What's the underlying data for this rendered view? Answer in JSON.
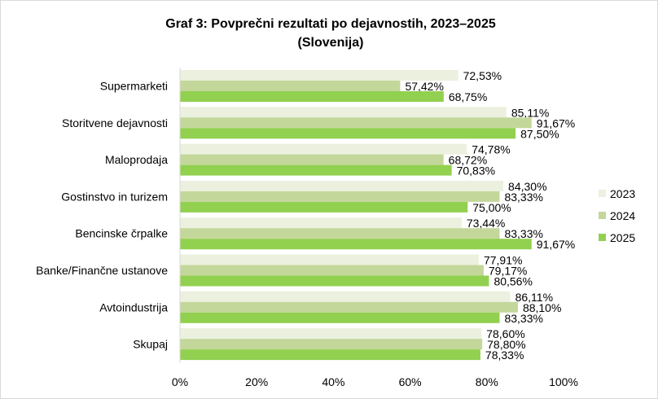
{
  "chart_data": {
    "type": "bar",
    "orientation": "horizontal",
    "title": "Graf 3: Povprečni rezultati po dejavnostih, 2023–2025",
    "subtitle": "(Slovenija)",
    "categories": [
      "Supermarketi",
      "Storitvene dejavnosti",
      "Maloprodaja",
      "Gostinstvo in turizem",
      "Bencinske črpalke",
      "Banke/Finančne ustanove",
      "Avtoindustrija",
      "Skupaj"
    ],
    "series": [
      {
        "name": "2023",
        "color": "#ebf1de",
        "values": [
          72.53,
          85.11,
          74.78,
          84.3,
          73.44,
          77.91,
          86.11,
          78.6
        ],
        "labels": [
          "72,53%",
          "85,11%",
          "74,78%",
          "84,30%",
          "73,44%",
          "77,91%",
          "86,11%",
          "78,60%"
        ]
      },
      {
        "name": "2024",
        "color": "#c4d79b",
        "values": [
          57.42,
          91.67,
          68.72,
          83.33,
          83.33,
          79.17,
          88.1,
          78.8
        ],
        "labels": [
          "57,42%",
          "91,67%",
          "68,72%",
          "83,33%",
          "83,33%",
          "79,17%",
          "88,10%",
          "78,80%"
        ]
      },
      {
        "name": "2025",
        "color": "#92d050",
        "values": [
          68.75,
          87.5,
          70.83,
          75.0,
          91.67,
          80.56,
          83.33,
          78.33
        ],
        "labels": [
          "68,75%",
          "87,50%",
          "70,83%",
          "75,00%",
          "91,67%",
          "80,56%",
          "83,33%",
          "78,33%"
        ]
      }
    ],
    "xlim": [
      0,
      100
    ],
    "xticks": [
      "0%",
      "20%",
      "40%",
      "60%",
      "80%",
      "100%"
    ],
    "grid": false,
    "legend": "right"
  }
}
